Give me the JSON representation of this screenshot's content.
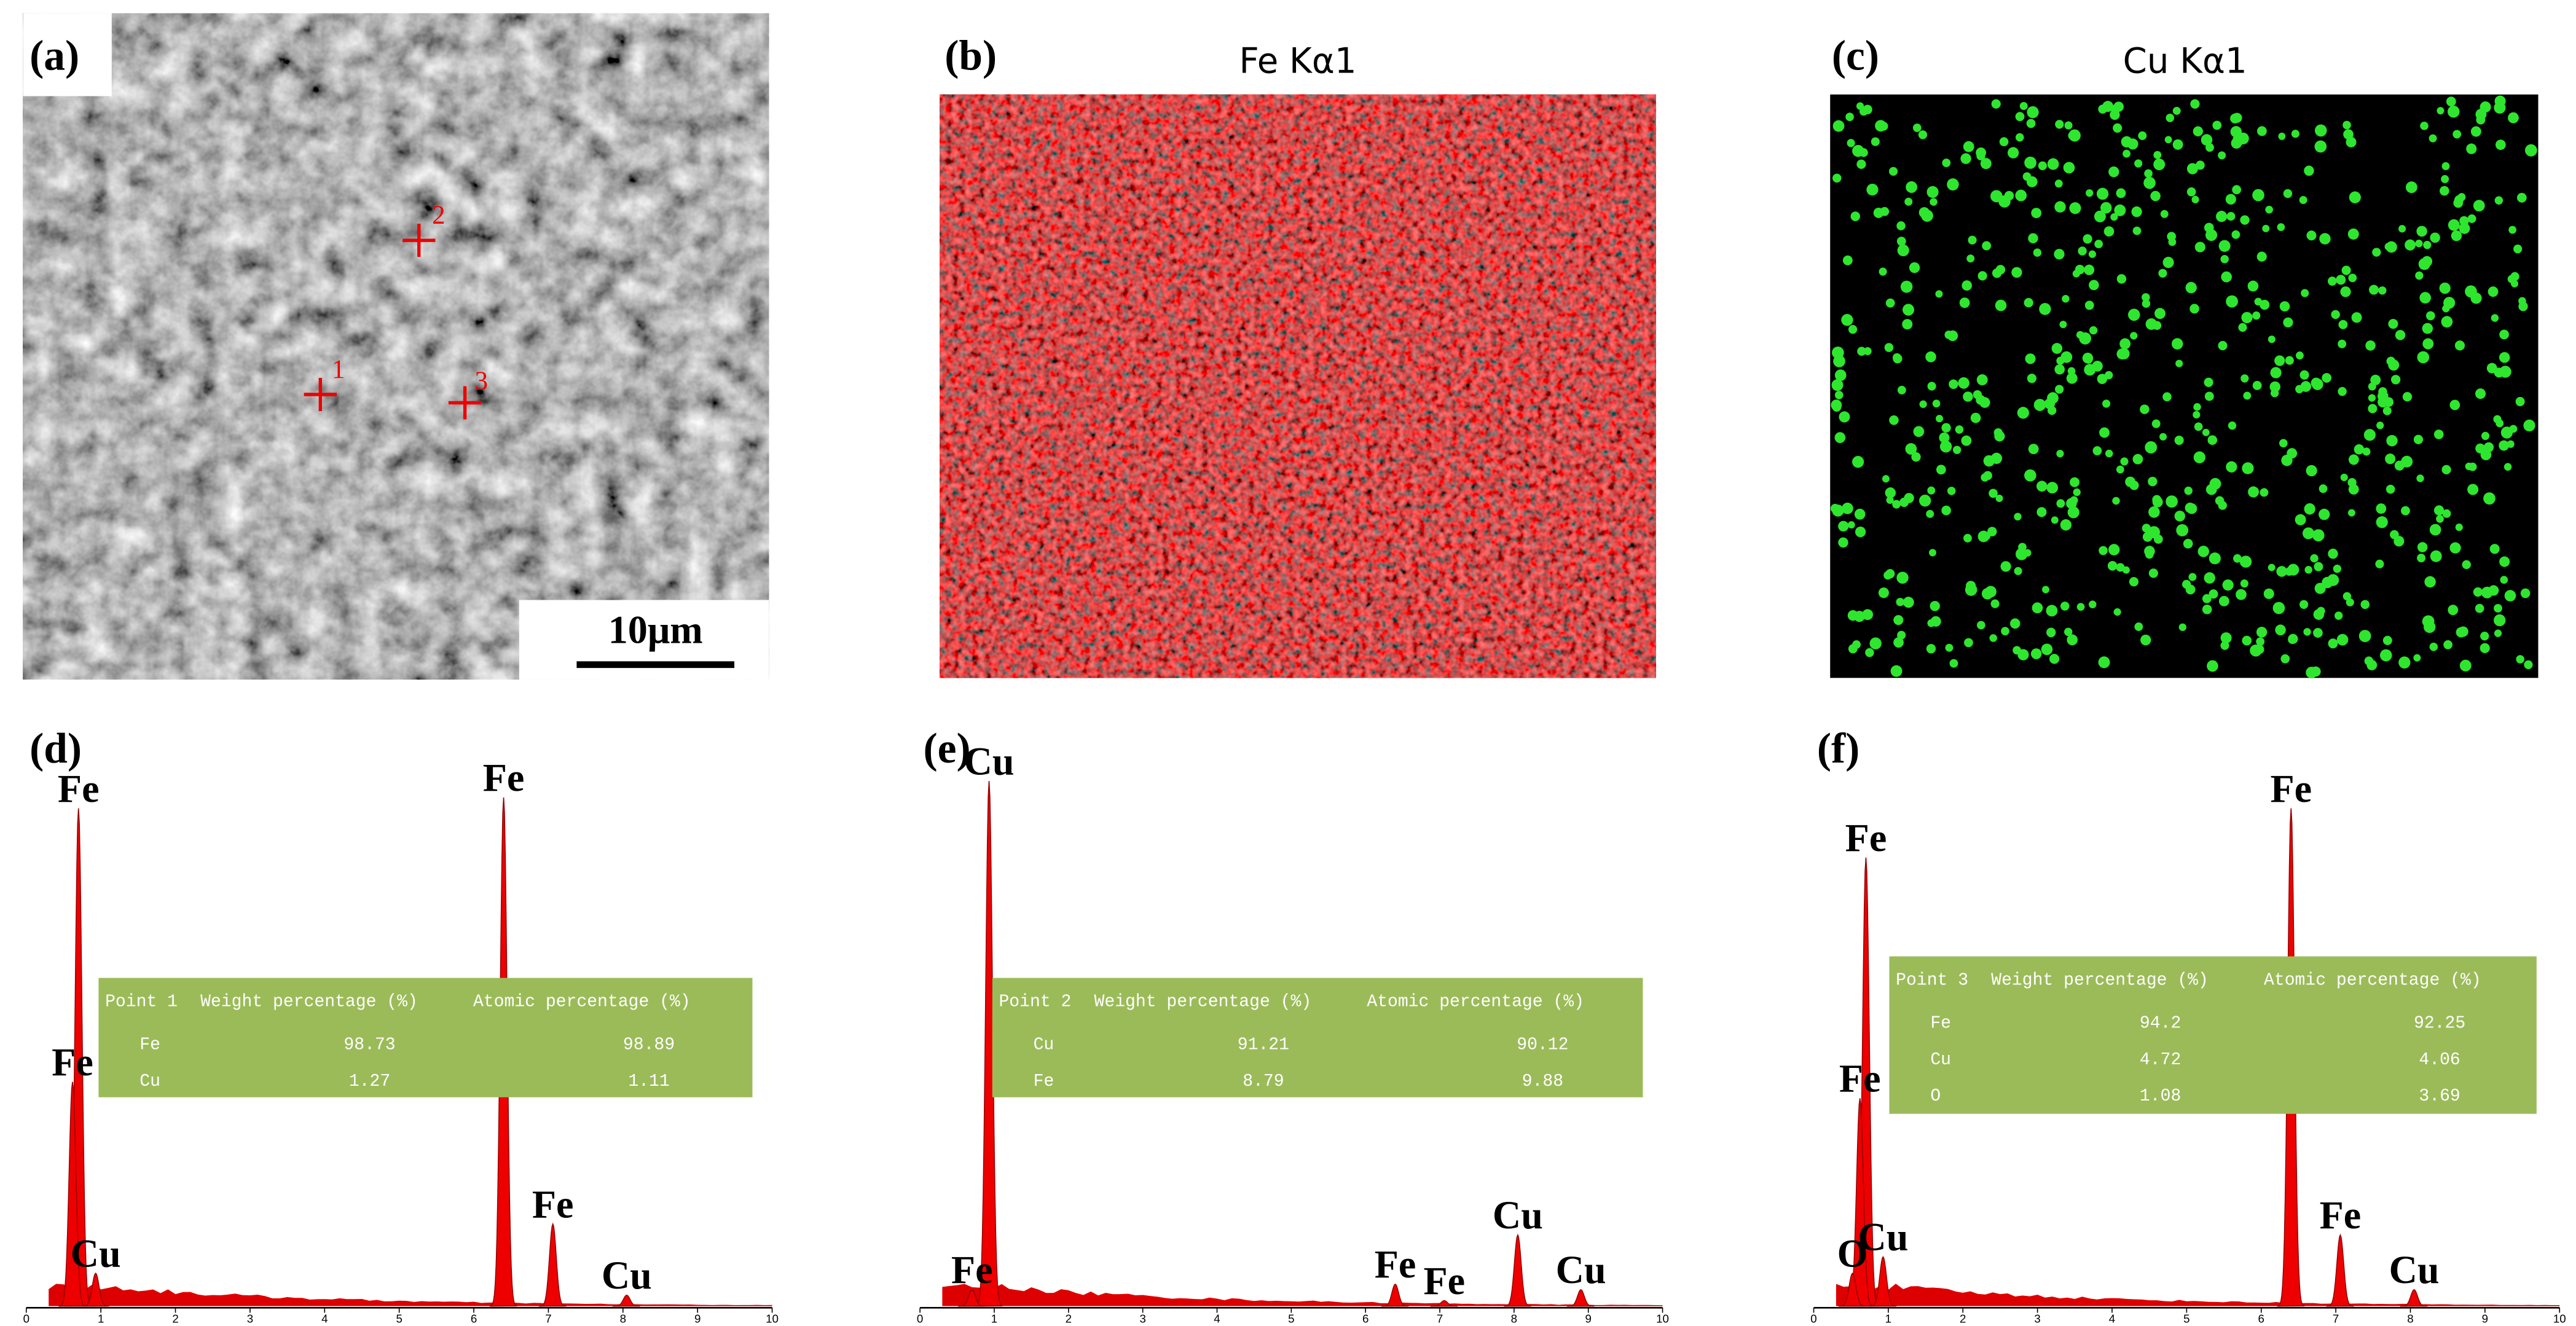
{
  "panels": [
    {
      "label": "(a)",
      "markers": [
        "1",
        "2",
        "3"
      ],
      "scale_bar": "10μm"
    },
    {
      "label": "(b)",
      "title": "Fe Kα1"
    },
    {
      "label": "(c)",
      "title": "Cu Kα1"
    }
  ],
  "spectra": [
    {
      "label": "(d)",
      "xlim": [
        0,
        10
      ],
      "xticks": [
        0,
        1,
        2,
        3,
        4,
        5,
        6,
        7,
        8,
        9,
        10
      ],
      "peaks": [
        {
          "label": "Fe",
          "energy": 0.7,
          "height": 91
        },
        {
          "label": "Fe",
          "energy": 0.62,
          "height": 41
        },
        {
          "label": "Cu",
          "energy": 0.93,
          "height": 6
        },
        {
          "label": "Fe",
          "energy": 6.4,
          "height": 93
        },
        {
          "label": "Fe",
          "energy": 7.06,
          "height": 15
        },
        {
          "label": "Cu",
          "energy": 8.05,
          "height": 2
        }
      ],
      "table": {
        "header": [
          "Point 1",
          "Weight percentage (%)",
          "Atomic percentage (%)"
        ],
        "rows": [
          [
            "Fe",
            "98.73",
            "98.89"
          ],
          [
            "Cu",
            "1.27",
            "1.11"
          ]
        ]
      }
    },
    {
      "label": "(e)",
      "xlim": [
        0,
        10
      ],
      "xticks": [
        0,
        1,
        2,
        3,
        4,
        5,
        6,
        7,
        8,
        9,
        10
      ],
      "peaks": [
        {
          "label": "Cu",
          "energy": 0.93,
          "height": 96
        },
        {
          "label": "Fe",
          "energy": 0.7,
          "height": 3
        },
        {
          "label": "Fe",
          "energy": 6.4,
          "height": 4
        },
        {
          "label": "Fe",
          "energy": 7.06,
          "height": 1
        },
        {
          "label": "Cu",
          "energy": 8.05,
          "height": 13
        },
        {
          "label": "Cu",
          "energy": 8.9,
          "height": 3
        }
      ],
      "table": {
        "header": [
          "Point 2",
          "Weight percentage (%)",
          "Atomic percentage (%)"
        ],
        "rows": [
          [
            "Cu",
            "91.21",
            "90.12"
          ],
          [
            "Fe",
            "8.79",
            "9.88"
          ]
        ]
      }
    },
    {
      "label": "(f)",
      "xlim": [
        0,
        10
      ],
      "xticks": [
        0,
        1,
        2,
        3,
        4,
        5,
        6,
        7,
        8,
        9,
        10
      ],
      "peaks": [
        {
          "label": "Fe",
          "energy": 0.7,
          "height": 82
        },
        {
          "label": "Fe",
          "energy": 0.62,
          "height": 38
        },
        {
          "label": "O",
          "energy": 0.52,
          "height": 6
        },
        {
          "label": "Cu",
          "energy": 0.93,
          "height": 9
        },
        {
          "label": "Fe",
          "energy": 6.4,
          "height": 91
        },
        {
          "label": "Fe",
          "energy": 7.06,
          "height": 13
        },
        {
          "label": "Cu",
          "energy": 8.05,
          "height": 3
        }
      ],
      "table": {
        "header": [
          "Point 3",
          "Weight percentage (%)",
          "Atomic percentage (%)"
        ],
        "rows": [
          [
            "Fe",
            "94.2",
            "92.25"
          ],
          [
            "Cu",
            "4.72",
            "4.06"
          ],
          [
            "O",
            "1.08",
            "3.69"
          ]
        ]
      }
    }
  ]
}
